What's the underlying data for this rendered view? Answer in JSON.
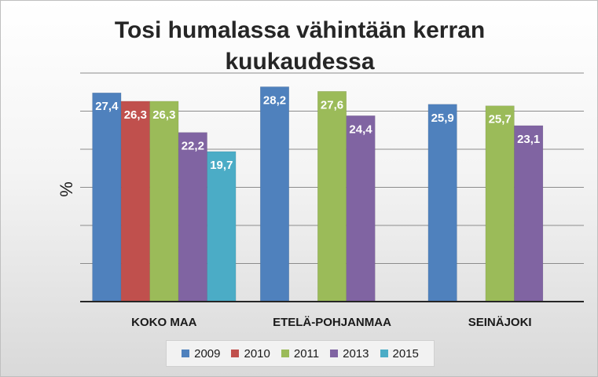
{
  "chart_data": {
    "type": "bar",
    "title_line1": "Tosi humalassa vähintään kerran",
    "title_line2": "kuukaudessa",
    "ylabel": "%",
    "xlabel": "",
    "ylim": [
      0,
      30
    ],
    "y_gridline_step": 5,
    "grid": true,
    "legend_position": "bottom",
    "categories": [
      "KOKO MAA",
      "ETELÄ-POHJANMAA",
      "SEINÄJOKI"
    ],
    "series": [
      {
        "name": "2009",
        "color": "#4f81bd",
        "values": [
          27.4,
          28.2,
          25.9
        ],
        "labels": [
          "27,4",
          "28,2",
          "25,9"
        ]
      },
      {
        "name": "2010",
        "color": "#c0504d",
        "values": [
          26.3,
          null,
          null
        ],
        "labels": [
          "26,3",
          "",
          ""
        ]
      },
      {
        "name": "2011",
        "color": "#9bbb59",
        "values": [
          26.3,
          27.6,
          25.7
        ],
        "labels": [
          "26,3",
          "27,6",
          "25,7"
        ]
      },
      {
        "name": "2013",
        "color": "#8064a2",
        "values": [
          22.2,
          24.4,
          23.1
        ],
        "labels": [
          "22,2",
          "24,4",
          "23,1"
        ]
      },
      {
        "name": "2015",
        "color": "#4bacc6",
        "values": [
          19.7,
          null,
          null
        ],
        "labels": [
          "19,7",
          "",
          ""
        ]
      }
    ]
  }
}
